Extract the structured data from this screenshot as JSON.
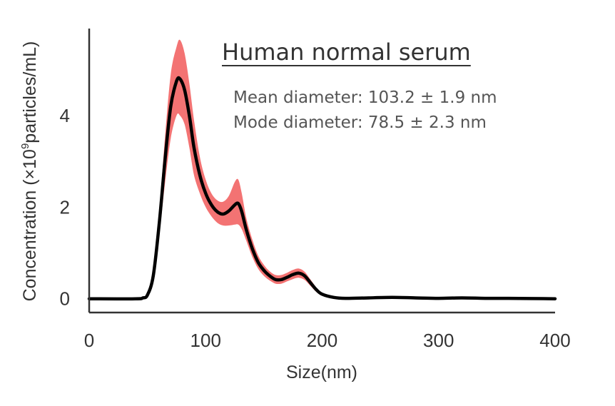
{
  "chart_data": {
    "type": "line",
    "title": "Human normal serum",
    "xlabel": "Size(nm)",
    "ylabel_main": "Concentration (×10",
    "ylabel_sup": "9",
    "ylabel_tail": "particles/mL)",
    "xlim": [
      0,
      400
    ],
    "ylim": [
      -0.3,
      5.9
    ],
    "xticks": [
      0,
      100,
      200,
      300,
      400
    ],
    "yticks": [
      0,
      2,
      4
    ],
    "grid": false,
    "annotations": [
      "Mean diameter: 103.2 ± 1.9 nm",
      "Mode diameter: 78.5 ± 2.3 nm"
    ],
    "series": [
      {
        "style": "mean line",
        "color": "#000000",
        "x": [
          0,
          40,
          46,
          50,
          55,
          60,
          65,
          70,
          75,
          78,
          82,
          86,
          90,
          95,
          100,
          105,
          110,
          115,
          120,
          125,
          128,
          131,
          135,
          140,
          145,
          150,
          155,
          160,
          165,
          170,
          175,
          180,
          185,
          190,
          195,
          200,
          210,
          220,
          240,
          260,
          280,
          300,
          320,
          340,
          360,
          400
        ],
        "y": [
          0,
          0,
          0.02,
          0.08,
          0.5,
          1.6,
          3.0,
          4.2,
          4.75,
          4.8,
          4.55,
          4.0,
          3.3,
          2.7,
          2.3,
          2.05,
          1.9,
          1.85,
          1.92,
          2.05,
          2.08,
          1.9,
          1.5,
          1.1,
          0.8,
          0.62,
          0.5,
          0.42,
          0.42,
          0.47,
          0.53,
          0.56,
          0.5,
          0.35,
          0.2,
          0.1,
          0.03,
          0.01,
          0.02,
          0.03,
          0.02,
          0.01,
          0.02,
          0.01,
          0.01,
          0.0
        ]
      },
      {
        "style": "error band",
        "color": "#f05050",
        "x": [
          0,
          40,
          46,
          50,
          55,
          60,
          65,
          70,
          75,
          78,
          82,
          86,
          90,
          95,
          100,
          105,
          110,
          115,
          120,
          125,
          128,
          131,
          135,
          140,
          145,
          150,
          155,
          160,
          165,
          170,
          175,
          180,
          185,
          190,
          195,
          200,
          210,
          220,
          240,
          260,
          280,
          300,
          320,
          340,
          360,
          400
        ],
        "upper": [
          0,
          0,
          0.03,
          0.12,
          0.62,
          1.85,
          3.5,
          4.9,
          5.5,
          5.65,
          5.35,
          4.7,
          3.9,
          3.1,
          2.6,
          2.3,
          2.15,
          2.12,
          2.25,
          2.55,
          2.6,
          2.3,
          1.75,
          1.3,
          0.95,
          0.74,
          0.6,
          0.52,
          0.52,
          0.57,
          0.63,
          0.66,
          0.59,
          0.42,
          0.25,
          0.13,
          0.05,
          0.02,
          0.03,
          0.05,
          0.03,
          0.02,
          0.04,
          0.02,
          0.02,
          0.0
        ],
        "lower": [
          0,
          0,
          0.01,
          0.04,
          0.38,
          1.35,
          2.5,
          3.5,
          4.0,
          4.0,
          3.8,
          3.3,
          2.7,
          2.3,
          2.0,
          1.8,
          1.66,
          1.6,
          1.6,
          1.62,
          1.62,
          1.52,
          1.26,
          0.92,
          0.66,
          0.5,
          0.4,
          0.33,
          0.33,
          0.38,
          0.43,
          0.46,
          0.41,
          0.28,
          0.15,
          0.07,
          0.01,
          0.0,
          0.01,
          0.01,
          0.01,
          0.0,
          0.0,
          0.0,
          0.0,
          0.0
        ]
      }
    ]
  }
}
